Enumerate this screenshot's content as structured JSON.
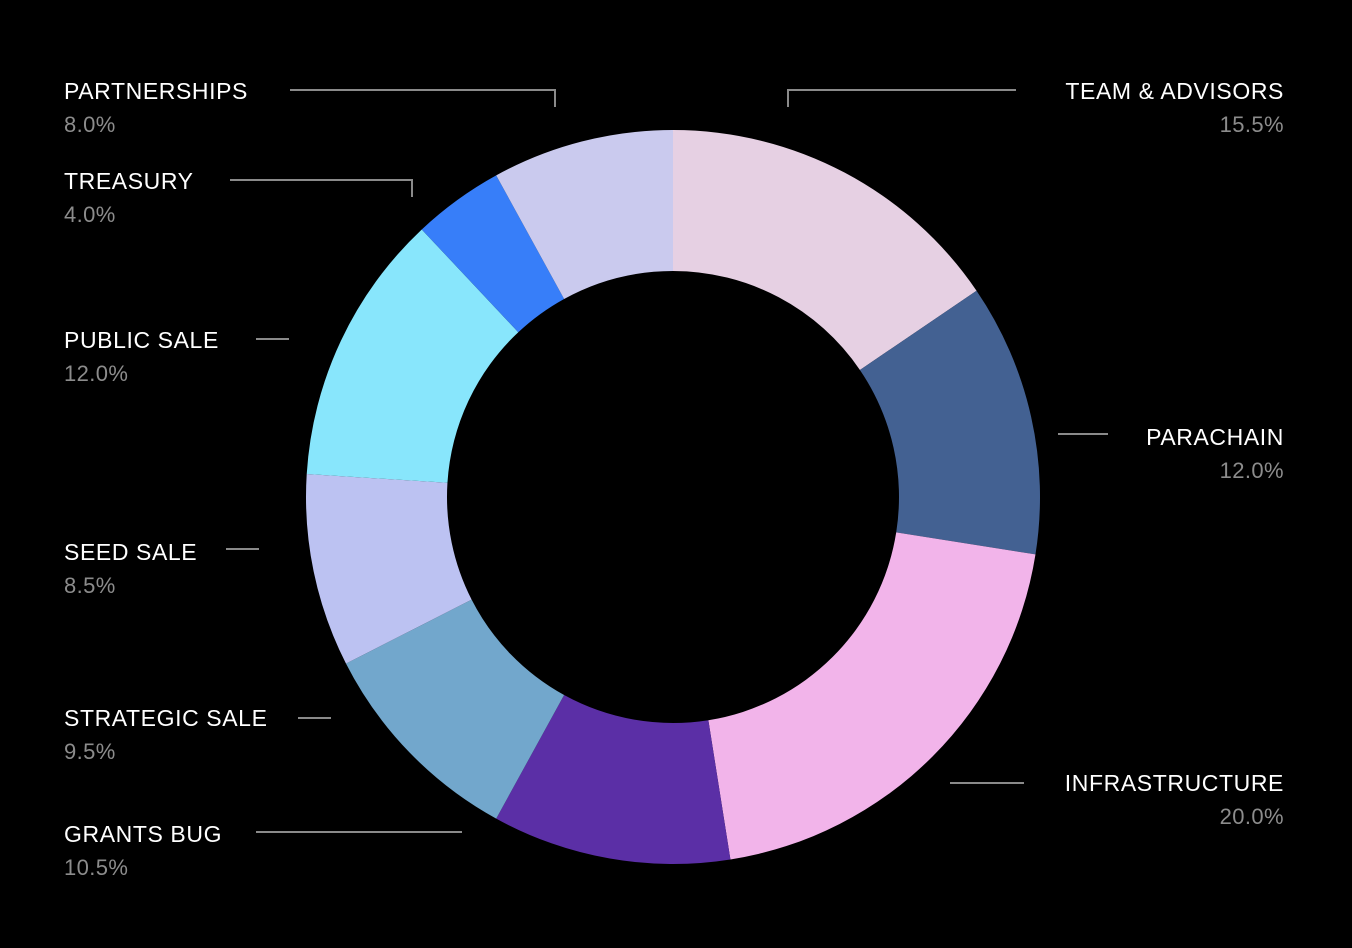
{
  "chart_data": {
    "type": "pie",
    "donut": true,
    "legend": "none",
    "slices": [
      {
        "label": "TEAM & ADVISORS",
        "value": 15.5,
        "value_label": "15.5%",
        "color": "#e6d0e3"
      },
      {
        "label": "PARACHAIN",
        "value": 12.0,
        "value_label": "12.0%",
        "color": "#436192"
      },
      {
        "label": "INFRASTRUCTURE",
        "value": 20.0,
        "value_label": "20.0%",
        "color": "#f2b4ea"
      },
      {
        "label": "GRANTS BUG",
        "value": 10.5,
        "value_label": "10.5%",
        "color": "#5b2fa6"
      },
      {
        "label": "STRATEGIC SALE",
        "value": 9.5,
        "value_label": "9.5%",
        "color": "#72a7cc"
      },
      {
        "label": "SEED SALE",
        "value": 8.5,
        "value_label": "8.5%",
        "color": "#bcc2f2"
      },
      {
        "label": "PUBLIC SALE",
        "value": 12.0,
        "value_label": "12.0%",
        "color": "#88e6fc"
      },
      {
        "label": "TREASURY",
        "value": 4.0,
        "value_label": "4.0%",
        "color": "#377ef9"
      },
      {
        "label": "PARTNERSHIPS",
        "value": 8.0,
        "value_label": "8.0%",
        "color": "#cacaee"
      }
    ]
  }
}
